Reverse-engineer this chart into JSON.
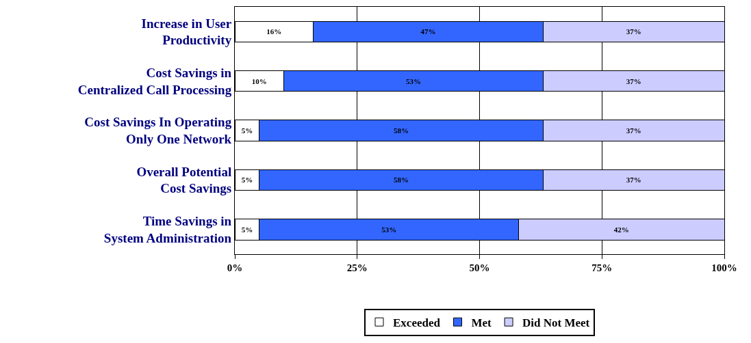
{
  "chart_data": {
    "type": "bar",
    "orientation": "horizontal",
    "stacked": true,
    "categories": [
      "Increase in User Productivity",
      "Cost Savings in Centralized Call Processing",
      "Cost Savings In Operating Only One Network",
      "Overall Potential Cost Savings",
      "Time Savings in System Administration"
    ],
    "series": [
      {
        "name": "Exceeded",
        "color": "#ffffff",
        "values": [
          16,
          10,
          5,
          5,
          5
        ],
        "value_labels": [
          "16%",
          "10%",
          "5%",
          "5%",
          "5%"
        ]
      },
      {
        "name": "Met",
        "color": "#3366ff",
        "values": [
          47,
          53,
          58,
          58,
          53
        ],
        "value_labels": [
          "47%",
          "53%",
          "58%",
          "58%",
          "53%"
        ]
      },
      {
        "name": "Did Not Meet",
        "color": "#ccccff",
        "values": [
          37,
          37,
          37,
          37,
          42
        ],
        "value_labels": [
          "37%",
          "37%",
          "37%",
          "37%",
          "42%"
        ]
      }
    ],
    "xlim": [
      0,
      100
    ],
    "xticks": [
      {
        "value": 0,
        "label": "0%"
      },
      {
        "value": 25,
        "label": "25%"
      },
      {
        "value": 50,
        "label": "50%"
      },
      {
        "value": 75,
        "label": "75%"
      },
      {
        "value": 100,
        "label": "100%"
      }
    ],
    "grid": "x",
    "legend": "bottom"
  }
}
